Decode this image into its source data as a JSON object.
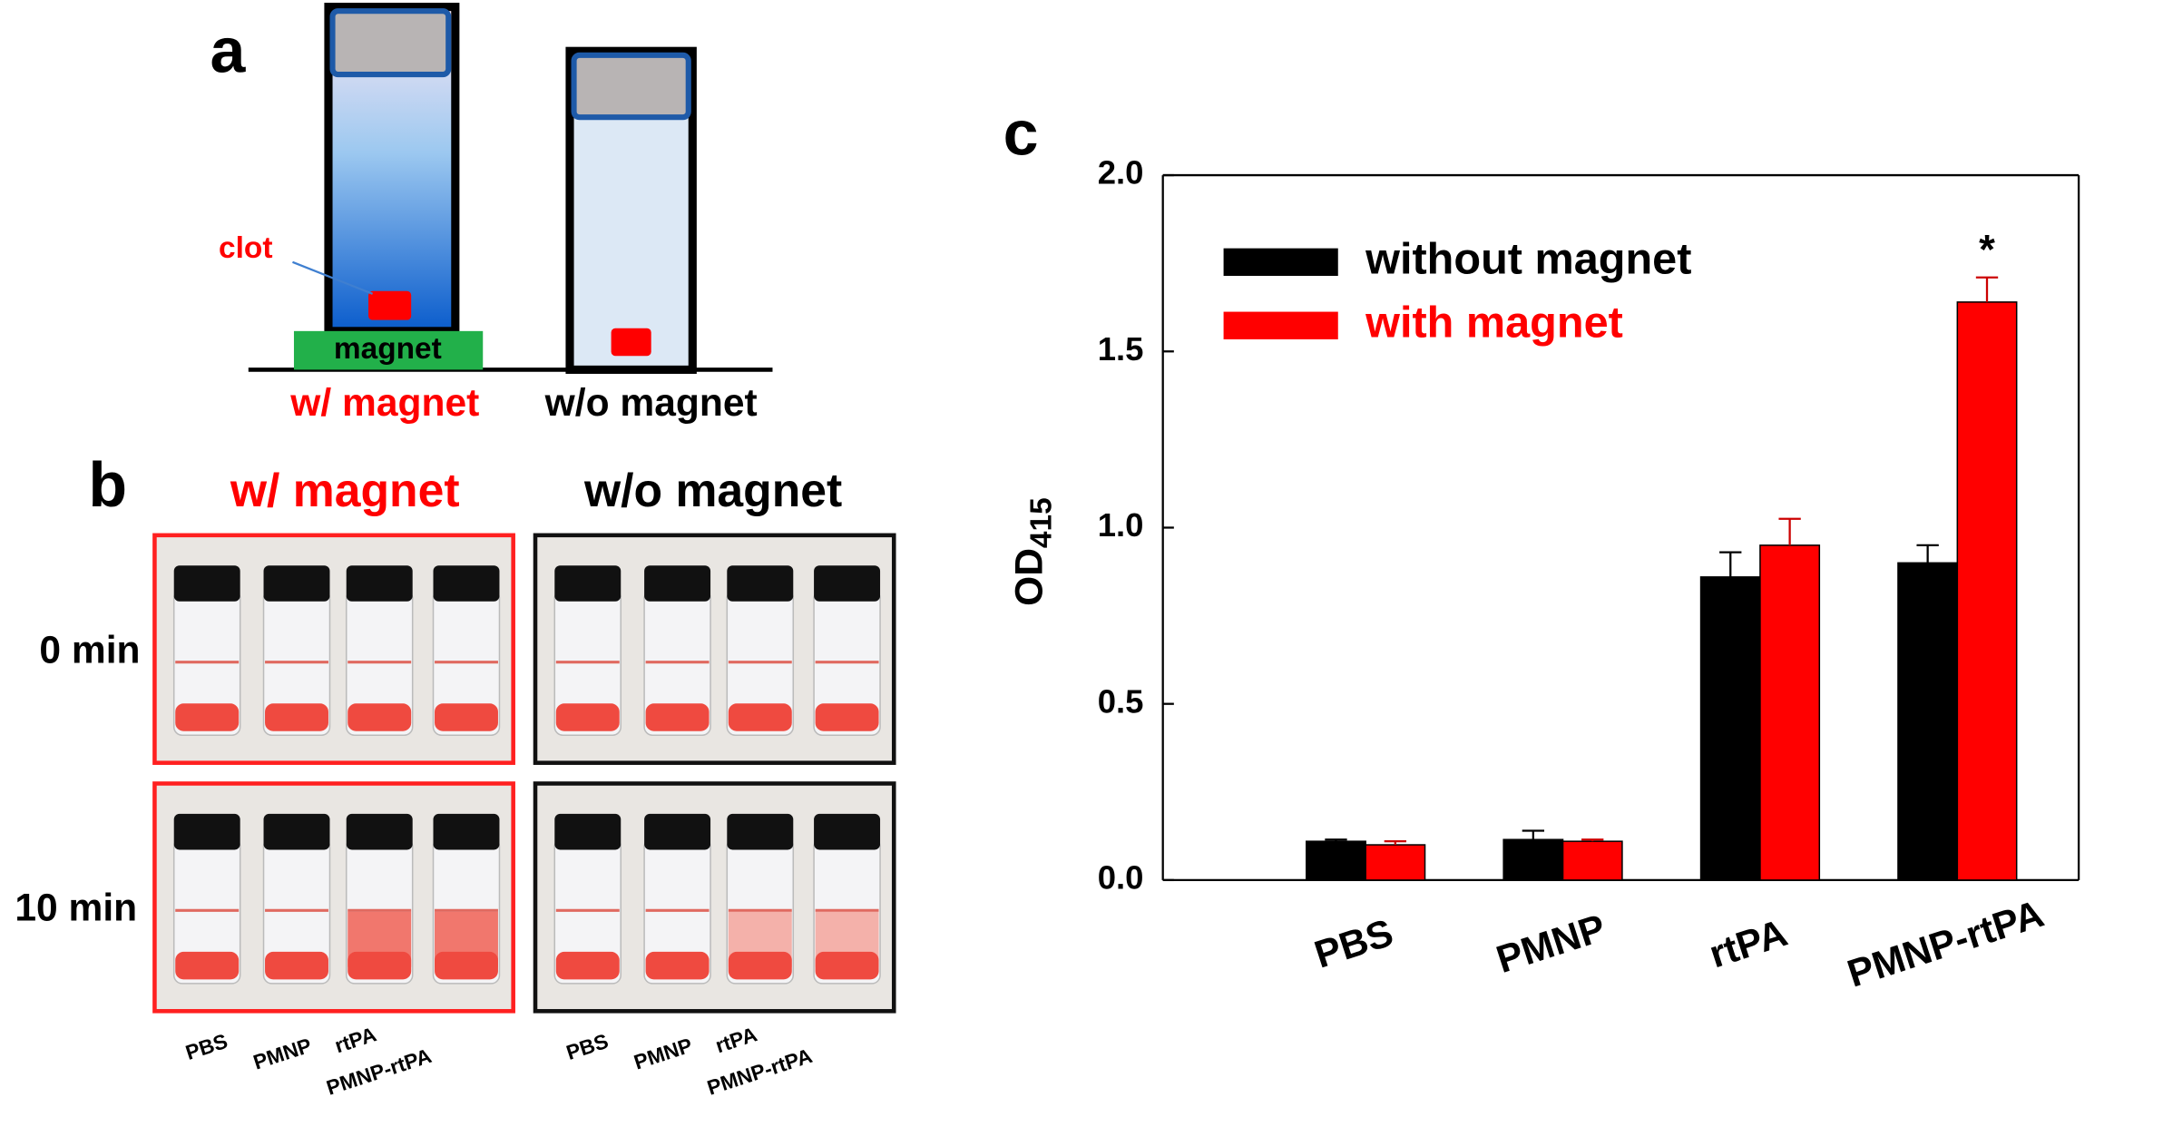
{
  "panel_a": {
    "label": "a",
    "clot": "clot",
    "magnet": "magnet",
    "with_label": "w/ magnet",
    "without_label": "w/o magnet"
  },
  "panel_b": {
    "label": "b",
    "columns": [
      "w/ magnet",
      "w/o magnet"
    ],
    "rows": [
      "0 min",
      "10 min"
    ],
    "vial_labels": [
      "PBS",
      "PMNP",
      "rtPA",
      "PMNP-rtPA"
    ]
  },
  "chart_data": {
    "type": "bar",
    "panel_label": "c",
    "y_label": {
      "text": "OD",
      "subscript": "415"
    },
    "categories": [
      "PBS",
      "PMNP",
      "rtPA",
      "PMNP-rtPA"
    ],
    "series": [
      {
        "name": "without magnet",
        "color": "#000000",
        "values": [
          0.11,
          0.115,
          0.86,
          0.9
        ],
        "errors": [
          0.005,
          0.025,
          0.07,
          0.05
        ]
      },
      {
        "name": "with magnet",
        "color": "#ff0000",
        "values": [
          0.1,
          0.11,
          0.95,
          1.64
        ],
        "errors": [
          0.01,
          0.005,
          0.075,
          0.07
        ]
      }
    ],
    "ylim": [
      0,
      2
    ],
    "yticks": [
      {
        "value": 0,
        "label": "0.0"
      },
      0.5,
      {
        "value": 1,
        "label": "1.0"
      },
      1.5,
      {
        "value": 2,
        "label": "2.0"
      }
    ],
    "annotations": [
      {
        "category": 3,
        "text": "*"
      }
    ],
    "legend": "upper left"
  }
}
